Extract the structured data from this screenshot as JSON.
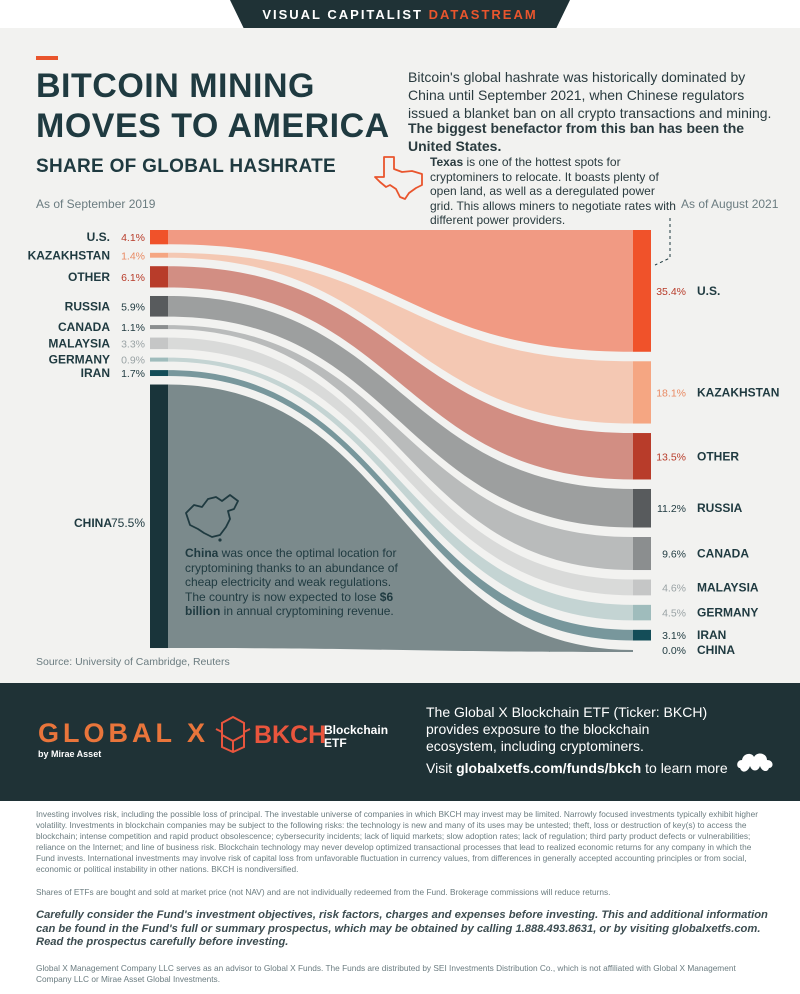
{
  "header": {
    "brand": "VISUAL CAPITALIST",
    "brand_accent": "DATASTREAM"
  },
  "title": "BITCOIN MINING MOVES TO AMERICA",
  "intro": "Bitcoin's global hashrate was historically dominated by China until September 2021, when Chinese regulators issued a blanket ban on all crypto transactions and mining.",
  "intro_bold": "The biggest benefactor from this ban has been the United States.",
  "subtitle": "SHARE OF GLOBAL HASHRATE",
  "texas_note": {
    "bold": "Texas",
    "text": " is one of the hottest spots for cryptominers to relocate. It boasts plenty of open land, as well as a deregulated power grid. This allows miners to negotiate rates with different power providers."
  },
  "china_note": {
    "bold": "China",
    "text1": " was once the optimal location for cryptomining thanks to an abundance of cheap electricity and weak regulations. The country is now expected to lose ",
    "bold2": "$6 billion",
    "text2": " in annual cryptomining revenue."
  },
  "source": "Source: University of Cambridge, Reuters",
  "colors": {
    "us": "#f0522a",
    "kazakhstan": "#f5a682",
    "other": "#b83c2a",
    "russia": "#585b5d",
    "canada": "#8b8e8f",
    "malaysia": "#c5c6c6",
    "germany": "#9fbcbc",
    "iran": "#144d58",
    "china": "#19343a"
  },
  "chart_data": {
    "type": "sankey",
    "left_label": "As of September 2019",
    "right_label": "As of August 2021",
    "unit": "%",
    "left": [
      {
        "name": "U.S.",
        "value": 4.1,
        "value_label": "4.1%"
      },
      {
        "name": "KAZAKHSTAN",
        "value": 1.4,
        "value_label": "1.4%"
      },
      {
        "name": "OTHER",
        "value": 6.1,
        "value_label": "6.1%"
      },
      {
        "name": "RUSSIA",
        "value": 5.9,
        "value_label": "5.9%"
      },
      {
        "name": "CANADA",
        "value": 1.1,
        "value_label": "1.1%"
      },
      {
        "name": "MALAYSIA",
        "value": 3.3,
        "value_label": "3.3%"
      },
      {
        "name": "GERMANY",
        "value": 0.9,
        "value_label": "0.9%"
      },
      {
        "name": "IRAN",
        "value": 1.7,
        "value_label": "1.7%"
      },
      {
        "name": "CHINA",
        "value": 75.5,
        "value_label": "75.5%"
      }
    ],
    "right": [
      {
        "name": "U.S.",
        "value": 35.4,
        "value_label": "35.4%"
      },
      {
        "name": "KAZAKHSTAN",
        "value": 18.1,
        "value_label": "18.1%"
      },
      {
        "name": "OTHER",
        "value": 13.5,
        "value_label": "13.5%"
      },
      {
        "name": "RUSSIA",
        "value": 11.2,
        "value_label": "11.2%"
      },
      {
        "name": "CANADA",
        "value": 9.6,
        "value_label": "9.6%"
      },
      {
        "name": "MALAYSIA",
        "value": 4.6,
        "value_label": "4.6%"
      },
      {
        "name": "GERMANY",
        "value": 4.5,
        "value_label": "4.5%"
      },
      {
        "name": "IRAN",
        "value": 3.1,
        "value_label": "3.1%"
      },
      {
        "name": "CHINA",
        "value": 0.0,
        "value_label": "0.0%"
      }
    ]
  },
  "footer": {
    "gx_logo": "GLOBAL X",
    "gx_sub": "by Mirae Asset",
    "bkch": "BKCH",
    "bkch_sub": "Blockchain ETF",
    "etf_desc": "The Global X Blockchain ETF (Ticker: BKCH) provides exposure to the blockchain ecosystem, including cryptominers.",
    "visit_pre": "Visit ",
    "visit_link": "globalxetfs.com/funds/bkch",
    "visit_post": " to learn more"
  },
  "disclaimer": "Investing involves risk, including the possible loss of principal. The investable universe of companies in which BKCH may invest may be limited. Narrowly focused investments typically exhibit higher volatility. Investments in blockchain companies may be subject to the following risks: the technology is new and many of its uses may be untested; theft, loss or destruction of key(s) to access the blockchain; intense competition and rapid product obsolescence; cybersecurity incidents; lack of liquid markets; slow adoption rates; lack of regulation; third party product defects or vulnerabilities; reliance on the Internet; and line of business risk. Blockchain technology may never develop optimized transactional processes that lead to realized economic returns for any company in which the Fund invests. International investments may involve risk of capital loss from unfavorable fluctuation in currency values, from differences in generally accepted accounting principles or from social, economic or political instability in other nations. BKCH is nondiversified.",
  "disclaimer2": "Shares of ETFs are bought and sold at market price (not NAV) and are not individually redeemed from the Fund. Brokerage commissions will reduce returns.",
  "disclaimer3": "Carefully consider the Fund's investment objectives, risk factors, charges and expenses before investing. This and additional information can be found in the Fund's full or summary prospectus, which may be obtained by calling 1.888.493.8631, or by visiting globalxetfs.com. Read the prospectus carefully before investing.",
  "disclaimer4": "Global X Management Company LLC serves as an advisor to Global X Funds. The Funds are distributed by SEI Investments Distribution Co., which is not affiliated with Global X Management Company LLC or Mirae Asset Global Investments."
}
